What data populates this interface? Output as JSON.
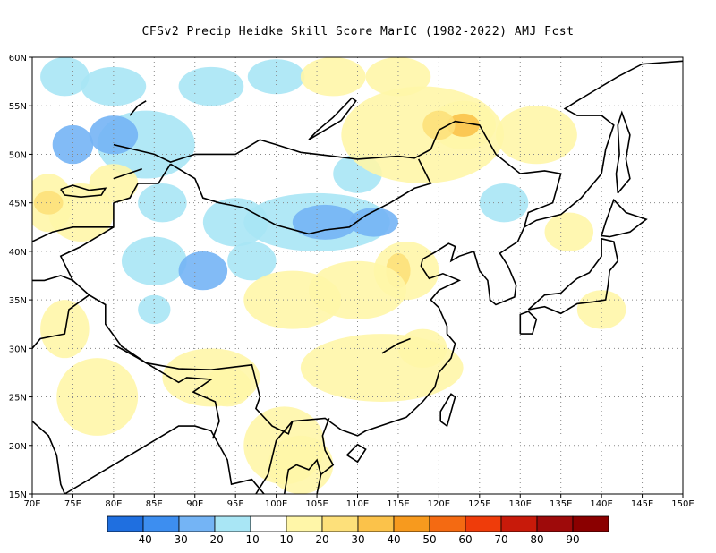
{
  "title": "CFSv2 Precip Heidke Skill Score MarIC (1982-2022) AMJ Fcst",
  "map": {
    "lon_range": [
      70,
      150
    ],
    "lat_range": [
      15,
      60
    ],
    "lon_ticks": [
      "70E",
      "75E",
      "80E",
      "85E",
      "90E",
      "95E",
      "100E",
      "105E",
      "110E",
      "115E",
      "120E",
      "125E",
      "130E",
      "135E",
      "140E",
      "145E",
      "150E"
    ],
    "lat_ticks": [
      "15N",
      "20N",
      "25N",
      "30N",
      "35N",
      "40N",
      "45N",
      "50N",
      "55N",
      "60N"
    ],
    "grid": "dotted"
  },
  "colorbar": {
    "labels": [
      "-40",
      "-30",
      "-20",
      "-10",
      "10",
      "20",
      "30",
      "40",
      "50",
      "60",
      "70",
      "80",
      "90"
    ],
    "colors": [
      "#1f6fe0",
      "#3d8ef0",
      "#74b4f5",
      "#a9e6f5",
      "#ffffff",
      "#fff6a8",
      "#fde07a",
      "#fbc24a",
      "#f79a1e",
      "#f46a12",
      "#ef3c0a",
      "#c81a0a",
      "#9e0a0a"
    ]
  },
  "anomalies": [
    {
      "lon": 74,
      "lat": 58,
      "rx": 3,
      "ry": 2,
      "level": -10
    },
    {
      "lon": 80,
      "lat": 57,
      "rx": 4,
      "ry": 2,
      "level": -10
    },
    {
      "lon": 84,
      "lat": 51,
      "rx": 6,
      "ry": 3.5,
      "level": -10
    },
    {
      "lon": 80,
      "lat": 52,
      "rx": 3,
      "ry": 2,
      "level": -20
    },
    {
      "lon": 75,
      "lat": 51,
      "rx": 2.5,
      "ry": 2,
      "level": -20
    },
    {
      "lon": 92,
      "lat": 57,
      "rx": 4,
      "ry": 2,
      "level": -10
    },
    {
      "lon": 100,
      "lat": 58,
      "rx": 3.5,
      "ry": 1.8,
      "level": -10
    },
    {
      "lon": 86,
      "lat": 45,
      "rx": 3,
      "ry": 2,
      "level": -10
    },
    {
      "lon": 95,
      "lat": 43,
      "rx": 4,
      "ry": 2.5,
      "level": -10
    },
    {
      "lon": 105,
      "lat": 43,
      "rx": 9,
      "ry": 3,
      "level": -10
    },
    {
      "lon": 106,
      "lat": 43,
      "rx": 4,
      "ry": 1.8,
      "level": -20
    },
    {
      "lon": 112,
      "lat": 43,
      "rx": 3,
      "ry": 1.5,
      "level": -20
    },
    {
      "lon": 85,
      "lat": 39,
      "rx": 4,
      "ry": 2.5,
      "level": -10
    },
    {
      "lon": 91,
      "lat": 38,
      "rx": 3,
      "ry": 2,
      "level": -20
    },
    {
      "lon": 97,
      "lat": 39,
      "rx": 3,
      "ry": 2,
      "level": -10
    },
    {
      "lon": 110,
      "lat": 48,
      "rx": 3,
      "ry": 2,
      "level": -10
    },
    {
      "lon": 128,
      "lat": 45,
      "rx": 3,
      "ry": 2,
      "level": -10
    },
    {
      "lon": 85,
      "lat": 34,
      "rx": 2,
      "ry": 1.5,
      "level": -10
    },
    {
      "lon": 72,
      "lat": 45,
      "rx": 3,
      "ry": 3,
      "level": 20
    },
    {
      "lon": 76,
      "lat": 44,
      "rx": 4,
      "ry": 3,
      "level": 20
    },
    {
      "lon": 72,
      "lat": 45,
      "rx": 1.8,
      "ry": 1.2,
      "level": 30
    },
    {
      "lon": 80,
      "lat": 47,
      "rx": 3,
      "ry": 2,
      "level": 10
    },
    {
      "lon": 118,
      "lat": 52,
      "rx": 10,
      "ry": 5,
      "level": 10
    },
    {
      "lon": 123,
      "lat": 53,
      "rx": 4,
      "ry": 2.5,
      "level": 20
    },
    {
      "lon": 123,
      "lat": 53,
      "rx": 2,
      "ry": 1.2,
      "level": 40
    },
    {
      "lon": 120,
      "lat": 53,
      "rx": 2,
      "ry": 1.5,
      "level": 30
    },
    {
      "lon": 132,
      "lat": 52,
      "rx": 5,
      "ry": 3,
      "level": 10
    },
    {
      "lon": 116,
      "lat": 38,
      "rx": 4,
      "ry": 3,
      "level": 20
    },
    {
      "lon": 115,
      "lat": 38,
      "rx": 1.5,
      "ry": 1.8,
      "level": 30
    },
    {
      "lon": 110,
      "lat": 36,
      "rx": 6,
      "ry": 3,
      "level": 10
    },
    {
      "lon": 102,
      "lat": 35,
      "rx": 6,
      "ry": 3,
      "level": 10
    },
    {
      "lon": 113,
      "lat": 28,
      "rx": 10,
      "ry": 3.5,
      "level": 10
    },
    {
      "lon": 118,
      "lat": 30,
      "rx": 3,
      "ry": 2,
      "level": 20
    },
    {
      "lon": 92,
      "lat": 27,
      "rx": 6,
      "ry": 3,
      "level": 10
    },
    {
      "lon": 94,
      "lat": 26,
      "rx": 3,
      "ry": 2,
      "level": 20
    },
    {
      "lon": 101,
      "lat": 20,
      "rx": 5,
      "ry": 4,
      "level": 10
    },
    {
      "lon": 103,
      "lat": 18,
      "rx": 4,
      "ry": 3,
      "level": 20
    },
    {
      "lon": 78,
      "lat": 25,
      "rx": 5,
      "ry": 4,
      "level": 10
    },
    {
      "lon": 74,
      "lat": 32,
      "rx": 3,
      "ry": 3,
      "level": 10
    },
    {
      "lon": 107,
      "lat": 58,
      "rx": 4,
      "ry": 2,
      "level": 10
    },
    {
      "lon": 115,
      "lat": 58,
      "rx": 4,
      "ry": 2,
      "level": 10
    },
    {
      "lon": 136,
      "lat": 42,
      "rx": 3,
      "ry": 2,
      "level": 10
    },
    {
      "lon": 140,
      "lat": 34,
      "rx": 3,
      "ry": 2,
      "level": 10
    }
  ]
}
